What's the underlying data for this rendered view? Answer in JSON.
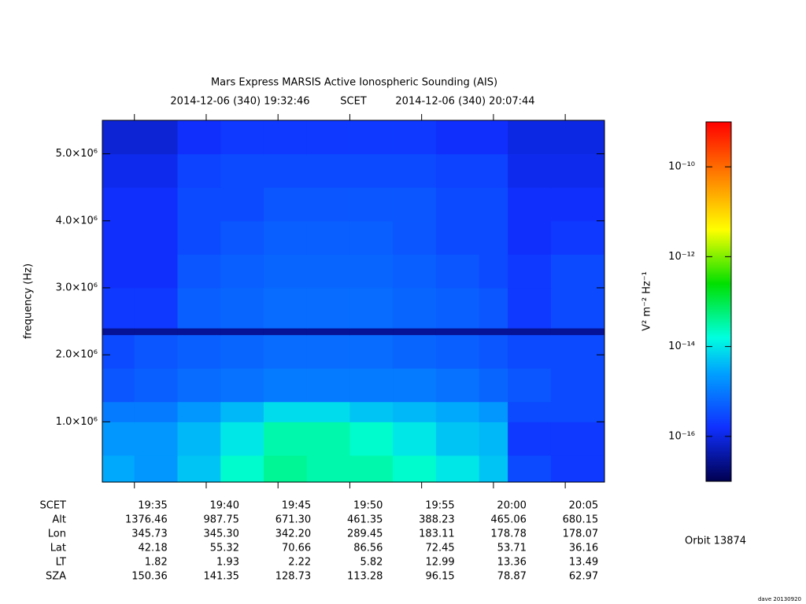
{
  "chart_data": {
    "type": "heatmap",
    "title": "Mars Express MARSIS Active Ionospheric Sounding (AIS)",
    "time_start": "2014-12-06 (340) 19:32:46",
    "time_system": "SCET",
    "time_end": "2014-12-06 (340) 20:07:44",
    "y_label": "frequency (Hz)",
    "xlim": [
      "19:32:46",
      "20:07:44"
    ],
    "xticks": [
      "19:35",
      "19:40",
      "19:45",
      "19:50",
      "19:55",
      "20:00",
      "20:05"
    ],
    "ylim": [
      100000,
      5500000
    ],
    "yticks": [
      {
        "value": 1000000,
        "label": "1.0×10⁶"
      },
      {
        "value": 2000000,
        "label": "2.0×10⁶"
      },
      {
        "value": 3000000,
        "label": "3.0×10⁶"
      },
      {
        "value": 4000000,
        "label": "4.0×10⁶"
      },
      {
        "value": 5000000,
        "label": "5.0×10⁶"
      }
    ],
    "x_edges": [
      "19:32:46",
      "19:35",
      "19:38",
      "19:41",
      "19:44",
      "19:47",
      "19:50",
      "19:53",
      "19:56",
      "19:59",
      "20:01",
      "20:04",
      "20:07:44"
    ],
    "y_edges": [
      100000,
      500000,
      1000000,
      1300000,
      1800000,
      2300000,
      2400000,
      3000000,
      3500000,
      4000000,
      4500000,
      5000000,
      5500000
    ],
    "values": [
      [
        3e-15,
        2e-15,
        5e-15,
        2e-14,
        4e-14,
        3e-14,
        3e-14,
        2e-14,
        1e-14,
        5e-15,
        3e-16,
        2e-16
      ],
      [
        2e-15,
        2e-15,
        4e-15,
        1e-14,
        3e-14,
        3e-14,
        2e-14,
        1e-14,
        5e-15,
        4e-15,
        2e-16,
        2e-16
      ],
      [
        1e-15,
        1e-15,
        2e-15,
        4e-15,
        8e-15,
        8e-15,
        5e-15,
        4e-15,
        3e-15,
        2e-15,
        3e-16,
        3e-16
      ],
      [
        4e-16,
        5e-16,
        7e-16,
        8e-16,
        1e-15,
        1e-15,
        1e-15,
        1e-15,
        8e-16,
        6e-16,
        4e-16,
        3e-16
      ],
      [
        3e-16,
        4e-16,
        5e-16,
        6e-16,
        7e-16,
        7e-16,
        7e-16,
        6e-16,
        5e-16,
        4e-16,
        3e-16,
        3e-16
      ],
      [
        3e-17,
        3e-17,
        3e-17,
        3e-17,
        3e-17,
        3e-17,
        3e-17,
        3e-17,
        3e-17,
        3e-17,
        3e-17,
        3e-17
      ],
      [
        2e-16,
        2e-16,
        5e-16,
        6e-16,
        7e-16,
        7e-16,
        7e-16,
        6e-16,
        5e-16,
        4e-16,
        2e-16,
        3e-16
      ],
      [
        1.5e-16,
        1.5e-16,
        4e-16,
        5e-16,
        6e-16,
        6e-16,
        6e-16,
        5e-16,
        4e-16,
        3e-16,
        2e-16,
        3e-16
      ],
      [
        1.5e-16,
        1.5e-16,
        3e-16,
        4e-16,
        5e-16,
        5e-16,
        5e-16,
        4e-16,
        3e-16,
        3e-16,
        1.5e-16,
        2e-16
      ],
      [
        1.5e-16,
        1.5e-16,
        3e-16,
        3e-16,
        4e-16,
        4e-16,
        4e-16,
        4e-16,
        3e-16,
        3e-16,
        1.5e-16,
        1.5e-16
      ],
      [
        1.2e-16,
        1.2e-16,
        2.5e-16,
        3e-16,
        3e-16,
        3e-16,
        3e-16,
        3e-16,
        2.5e-16,
        2.5e-16,
        1.2e-16,
        1.2e-16
      ],
      [
        8e-17,
        8e-17,
        1.5e-16,
        2e-16,
        2e-16,
        2e-16,
        2e-16,
        2e-16,
        1.5e-16,
        1.5e-16,
        1e-16,
        1e-16
      ]
    ],
    "z_label": "V² m⁻² Hz⁻¹",
    "zlim": [
      1e-17,
      1e-09
    ],
    "z_log": true,
    "zticks": [
      {
        "value": 1e-10,
        "label": "10⁻¹⁰"
      },
      {
        "value": 1e-12,
        "label": "10⁻¹²"
      },
      {
        "value": 1e-14,
        "label": "10⁻¹⁴"
      },
      {
        "value": 1e-16,
        "label": "10⁻¹⁶"
      }
    ],
    "ephemeris": {
      "time_label": "SCET",
      "labels": [
        "Alt",
        "Lon",
        "Lat",
        "LT",
        "SZA"
      ],
      "rows": [
        [
          "1376.46",
          "987.75",
          "671.30",
          "461.35",
          "388.23",
          "465.06",
          "680.15"
        ],
        [
          "345.73",
          "345.30",
          "342.20",
          "289.45",
          "183.11",
          "178.78",
          "178.07"
        ],
        [
          "42.18",
          "55.32",
          "70.66",
          "86.56",
          "72.45",
          "53.71",
          "36.16"
        ],
        [
          "1.82",
          "1.93",
          "2.22",
          "5.82",
          "12.99",
          "13.36",
          "13.49"
        ],
        [
          "150.36",
          "141.35",
          "128.73",
          "113.28",
          "96.15",
          "78.87",
          "62.97"
        ]
      ]
    },
    "orbit": "Orbit 13874",
    "footer": "dave 20130920"
  }
}
